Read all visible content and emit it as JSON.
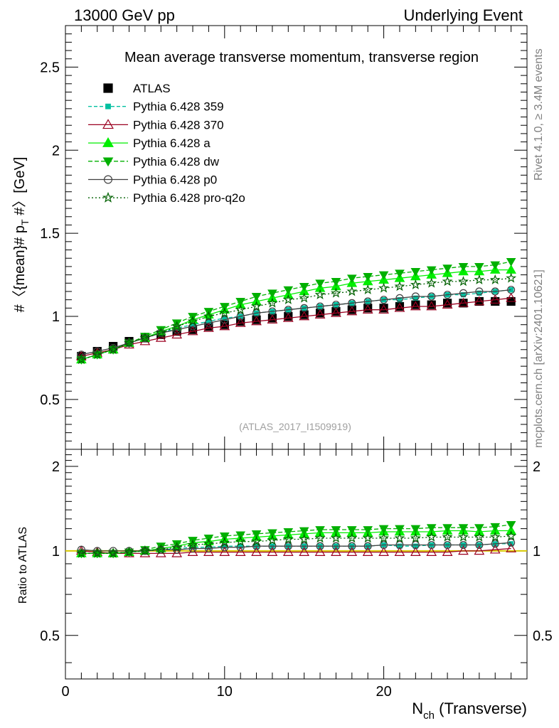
{
  "header": {
    "left": "13000 GeV pp",
    "right": "Underlying Event",
    "side_rivet": "Rivet 4.1.0, ≥ 3.4M events",
    "side_mcplots": "mcplots.cern.ch [arXiv:2401.10621]",
    "watermark": "(ATLAS_2017_I1509919)"
  },
  "colors": {
    "atlas": "#000000",
    "p359": "#00c0a0",
    "p370": "#9b0020",
    "pa": "#00ee00",
    "pdw": "#00b000",
    "pp0": "#404040",
    "pq2o": "#006000",
    "ref_line": "#d8c800"
  },
  "chart_data": [
    {
      "type": "line",
      "title": "Mean average transverse momentum, transverse region",
      "xlabel": "N_ch (Transverse)",
      "ylabel": "#〈{mean}# p_T #〉 [GeV]",
      "xlim": [
        0,
        29
      ],
      "ylim": [
        0.2,
        2.75
      ],
      "yticks": [
        0.5,
        1,
        1.5,
        2,
        2.5
      ],
      "ytick_labels": [
        "0.5",
        "1",
        "1.5",
        "2",
        "2.5"
      ],
      "x": [
        1,
        2,
        3,
        4,
        5,
        6,
        7,
        8,
        9,
        10,
        11,
        12,
        13,
        14,
        15,
        16,
        17,
        18,
        19,
        20,
        21,
        22,
        23,
        24,
        25,
        26,
        27,
        28
      ],
      "series": [
        {
          "name": "ATLAS",
          "key": "atlas",
          "values": [
            0.76,
            0.79,
            0.82,
            0.85,
            0.87,
            0.89,
            0.91,
            0.92,
            0.94,
            0.95,
            0.97,
            0.98,
            0.99,
            1.0,
            1.01,
            1.02,
            1.03,
            1.04,
            1.05,
            1.05,
            1.06,
            1.07,
            1.07,
            1.08,
            1.08,
            1.09,
            1.09,
            1.09
          ]
        },
        {
          "name": "Pythia 6.428 359",
          "key": "p359",
          "values": [
            0.74,
            0.77,
            0.8,
            0.84,
            0.87,
            0.9,
            0.93,
            0.95,
            0.97,
            0.99,
            1.0,
            1.02,
            1.03,
            1.04,
            1.05,
            1.06,
            1.07,
            1.08,
            1.09,
            1.1,
            1.1,
            1.11,
            1.12,
            1.13,
            1.13,
            1.14,
            1.15,
            1.16
          ]
        },
        {
          "name": "Pythia 6.428 370",
          "key": "p370",
          "values": [
            0.76,
            0.78,
            0.8,
            0.83,
            0.85,
            0.87,
            0.89,
            0.91,
            0.93,
            0.94,
            0.96,
            0.97,
            0.98,
            0.99,
            1.0,
            1.01,
            1.02,
            1.03,
            1.04,
            1.04,
            1.05,
            1.06,
            1.06,
            1.07,
            1.08,
            1.09,
            1.1,
            1.11
          ]
        },
        {
          "name": "Pythia 6.428 a",
          "key": "pa",
          "values": [
            0.74,
            0.77,
            0.8,
            0.84,
            0.87,
            0.91,
            0.94,
            0.98,
            1.01,
            1.04,
            1.07,
            1.09,
            1.11,
            1.13,
            1.15,
            1.17,
            1.18,
            1.2,
            1.21,
            1.22,
            1.23,
            1.24,
            1.25,
            1.26,
            1.27,
            1.27,
            1.28,
            1.28
          ]
        },
        {
          "name": "Pythia 6.428 dw",
          "key": "pdw",
          "values": [
            0.74,
            0.77,
            0.8,
            0.84,
            0.88,
            0.92,
            0.96,
            1.0,
            1.03,
            1.06,
            1.09,
            1.12,
            1.14,
            1.16,
            1.18,
            1.2,
            1.21,
            1.23,
            1.24,
            1.25,
            1.26,
            1.27,
            1.28,
            1.29,
            1.3,
            1.3,
            1.31,
            1.33
          ]
        },
        {
          "name": "Pythia 6.428 p0",
          "key": "pp0",
          "values": [
            0.77,
            0.79,
            0.81,
            0.84,
            0.87,
            0.9,
            0.92,
            0.94,
            0.96,
            0.98,
            1.0,
            1.02,
            1.03,
            1.04,
            1.05,
            1.06,
            1.07,
            1.08,
            1.09,
            1.1,
            1.11,
            1.12,
            1.12,
            1.13,
            1.14,
            1.15,
            1.15,
            1.16
          ]
        },
        {
          "name": "Pythia 6.428 pro-q2o",
          "key": "pq2o",
          "values": [
            0.74,
            0.77,
            0.8,
            0.84,
            0.87,
            0.9,
            0.94,
            0.97,
            1.0,
            1.02,
            1.04,
            1.06,
            1.08,
            1.1,
            1.11,
            1.13,
            1.14,
            1.15,
            1.16,
            1.17,
            1.18,
            1.19,
            1.2,
            1.21,
            1.21,
            1.22,
            1.22,
            1.23
          ]
        }
      ]
    },
    {
      "type": "line",
      "title": "",
      "xlabel": "N_ch (Transverse)",
      "ylabel": "Ratio to ATLAS",
      "xlim": [
        0,
        29
      ],
      "ylim": [
        0.35,
        2.3
      ],
      "yticks": [
        0.5,
        1,
        2
      ],
      "ytick_labels": [
        "0.5",
        "1",
        "2"
      ],
      "xticks": [
        0,
        10,
        20
      ],
      "xtick_labels": [
        "0",
        "10",
        "20"
      ],
      "x": [
        1,
        2,
        3,
        4,
        5,
        6,
        7,
        8,
        9,
        10,
        11,
        12,
        13,
        14,
        15,
        16,
        17,
        18,
        19,
        20,
        21,
        22,
        23,
        24,
        25,
        26,
        27,
        28
      ],
      "series": [
        {
          "name": "Pythia 6.428 359",
          "key": "p359",
          "values": [
            0.98,
            0.98,
            0.98,
            0.99,
            1.0,
            1.01,
            1.02,
            1.03,
            1.03,
            1.04,
            1.04,
            1.04,
            1.04,
            1.04,
            1.04,
            1.04,
            1.04,
            1.04,
            1.04,
            1.05,
            1.04,
            1.04,
            1.05,
            1.05,
            1.05,
            1.05,
            1.06,
            1.06
          ]
        },
        {
          "name": "Pythia 6.428 370",
          "key": "p370",
          "values": [
            1.0,
            0.99,
            0.98,
            0.98,
            0.98,
            0.98,
            0.98,
            0.99,
            0.99,
            0.99,
            0.99,
            0.99,
            0.99,
            0.99,
            0.99,
            0.99,
            0.99,
            0.99,
            0.99,
            0.99,
            0.99,
            0.99,
            0.99,
            0.99,
            1.0,
            1.0,
            1.01,
            1.02
          ]
        },
        {
          "name": "Pythia 6.428 a",
          "key": "pa",
          "values": [
            0.98,
            0.98,
            0.98,
            0.99,
            1.0,
            1.02,
            1.04,
            1.07,
            1.08,
            1.1,
            1.11,
            1.12,
            1.13,
            1.14,
            1.15,
            1.16,
            1.16,
            1.16,
            1.16,
            1.17,
            1.17,
            1.17,
            1.17,
            1.18,
            1.18,
            1.17,
            1.18,
            1.18
          ]
        },
        {
          "name": "Pythia 6.428 dw",
          "key": "pdw",
          "values": [
            0.98,
            0.98,
            0.98,
            0.99,
            1.01,
            1.04,
            1.06,
            1.09,
            1.11,
            1.13,
            1.14,
            1.15,
            1.16,
            1.17,
            1.18,
            1.19,
            1.19,
            1.19,
            1.19,
            1.2,
            1.2,
            1.2,
            1.21,
            1.21,
            1.21,
            1.21,
            1.22,
            1.24
          ]
        },
        {
          "name": "Pythia 6.428 p0",
          "key": "pp0",
          "values": [
            1.01,
            1.0,
            1.0,
            1.0,
            1.0,
            1.01,
            1.01,
            1.02,
            1.02,
            1.03,
            1.03,
            1.04,
            1.04,
            1.04,
            1.04,
            1.04,
            1.04,
            1.04,
            1.04,
            1.05,
            1.05,
            1.05,
            1.05,
            1.05,
            1.05,
            1.05,
            1.06,
            1.07
          ]
        },
        {
          "name": "Pythia 6.428 pro-q2o",
          "key": "pq2o",
          "values": [
            0.98,
            0.98,
            0.98,
            0.99,
            1.0,
            1.01,
            1.03,
            1.05,
            1.06,
            1.07,
            1.08,
            1.08,
            1.09,
            1.1,
            1.1,
            1.11,
            1.11,
            1.11,
            1.11,
            1.11,
            1.11,
            1.11,
            1.12,
            1.12,
            1.12,
            1.12,
            1.12,
            1.13
          ]
        }
      ]
    }
  ]
}
